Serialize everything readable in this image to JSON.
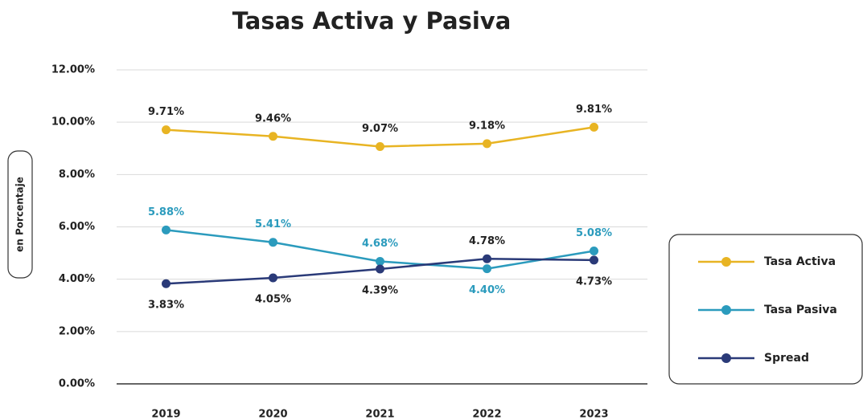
{
  "chart_data": {
    "type": "line",
    "title": "Tasas Activa y Pasiva",
    "y_label": "en Porcentaje",
    "categories": [
      "2019",
      "2020",
      "2021",
      "2022",
      "2023"
    ],
    "series": [
      {
        "name": "Tasa Activa",
        "color": "#e8b423",
        "values": [
          9.71,
          9.46,
          9.07,
          9.18,
          9.81
        ],
        "value_labels": [
          "9.71%",
          "9.46%",
          "9.07%",
          "9.18%",
          "9.81%"
        ]
      },
      {
        "name": "Tasa Pasiva",
        "color": "#2b9bbd",
        "values": [
          5.88,
          5.41,
          4.68,
          4.4,
          5.08
        ],
        "value_labels": [
          "5.88%",
          "5.41%",
          "4.68%",
          "4.40%",
          "5.08%"
        ]
      },
      {
        "name": "Spread",
        "color": "#2a3a78",
        "values": [
          3.83,
          4.05,
          4.39,
          4.78,
          4.73
        ],
        "value_labels": [
          "3.83%",
          "4.05%",
          "4.39%",
          "4.78%",
          "4.73%"
        ]
      }
    ],
    "ylim": [
      0,
      12
    ],
    "yticks": [
      {
        "value": 0,
        "label": "0.00%"
      },
      {
        "value": 2,
        "label": "2.00%"
      },
      {
        "value": 4,
        "label": "4.00%"
      },
      {
        "value": 6,
        "label": "6.00%"
      },
      {
        "value": 8,
        "label": "8.00%"
      },
      {
        "value": 10,
        "label": "10.00%"
      },
      {
        "value": 12,
        "label": "12.00%"
      }
    ],
    "grid": true,
    "legend": "right"
  }
}
